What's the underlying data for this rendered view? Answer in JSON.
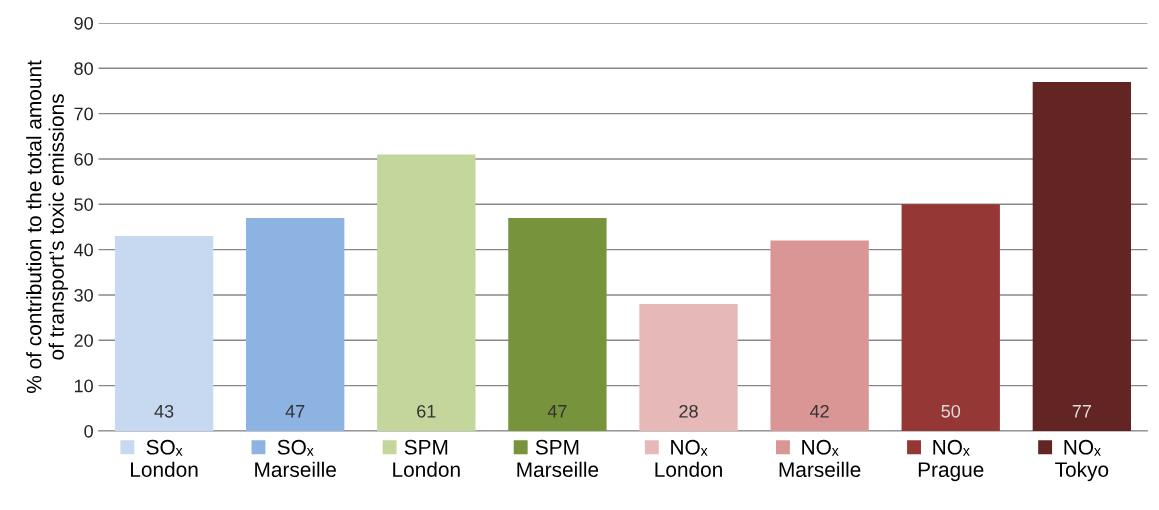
{
  "chart_data": {
    "type": "bar",
    "ylabel": "% of contribution to the total amount\nof transport’s toxic emissions",
    "categories": [
      "SOₓ\nLondon",
      "SOₓ\nMarseille",
      "SPM\nLondon",
      "SPM\nMarseille",
      "NOₓ\nLondon",
      "NOₓ\nMarseille",
      "NOₓ\nPrague",
      "NOₓ\nTokyo"
    ],
    "values": [
      43,
      47,
      61,
      47,
      28,
      42,
      50,
      77
    ],
    "colors": [
      "#c6d9f1",
      "#8db3e2",
      "#c3d69b",
      "#77933c",
      "#e6b9b8",
      "#d99694",
      "#953735",
      "#632523"
    ],
    "ylim": [
      0,
      90
    ],
    "yticks": [
      0,
      10,
      20,
      30,
      40,
      50,
      60,
      70,
      80,
      90
    ],
    "grid": "y",
    "data_labels": true,
    "legend": false
  }
}
